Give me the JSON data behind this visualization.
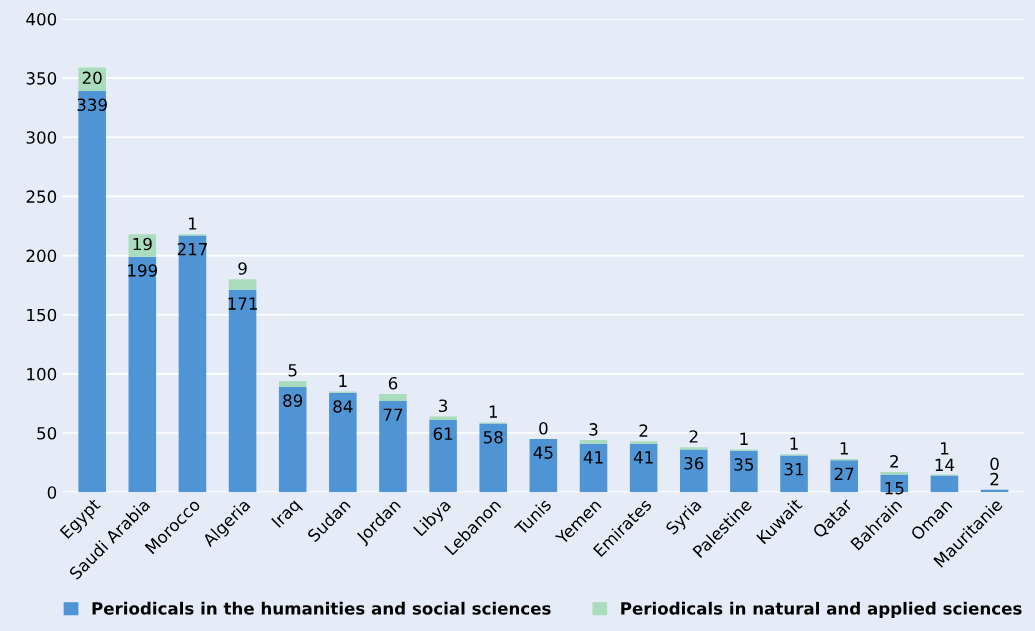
{
  "chart_data": {
    "type": "bar",
    "stacked": true,
    "categories": [
      "Egypt",
      "Saudi Arabia",
      "Morocco",
      "Algeria",
      "Iraq",
      "Sudan",
      "Jordan",
      "Libya",
      "Lebanon",
      "Tunis",
      "Yemen",
      "Emirates",
      "Syria",
      "Palestine",
      "Kuwait",
      "Qatar",
      "Bahrain",
      "Oman",
      "Mauritanie"
    ],
    "series": [
      {
        "name": "Periodicals in the humanities and social sciences",
        "color": "#4f94d4",
        "values": [
          339,
          199,
          217,
          171,
          89,
          84,
          77,
          61,
          58,
          45,
          41,
          41,
          36,
          35,
          31,
          27,
          15,
          14,
          2
        ]
      },
      {
        "name": "Periodicals in natural and applied sciences",
        "color": "#a9dcbc",
        "values": [
          20,
          19,
          1,
          9,
          5,
          1,
          6,
          3,
          1,
          0,
          3,
          2,
          2,
          1,
          1,
          1,
          2,
          1,
          0
        ]
      }
    ],
    "ylim": [
      0,
      400
    ],
    "yticks": [
      0,
      50,
      100,
      150,
      200,
      250,
      300,
      350,
      400
    ],
    "grid": "y",
    "legend": "bottom",
    "data_labels": true
  }
}
